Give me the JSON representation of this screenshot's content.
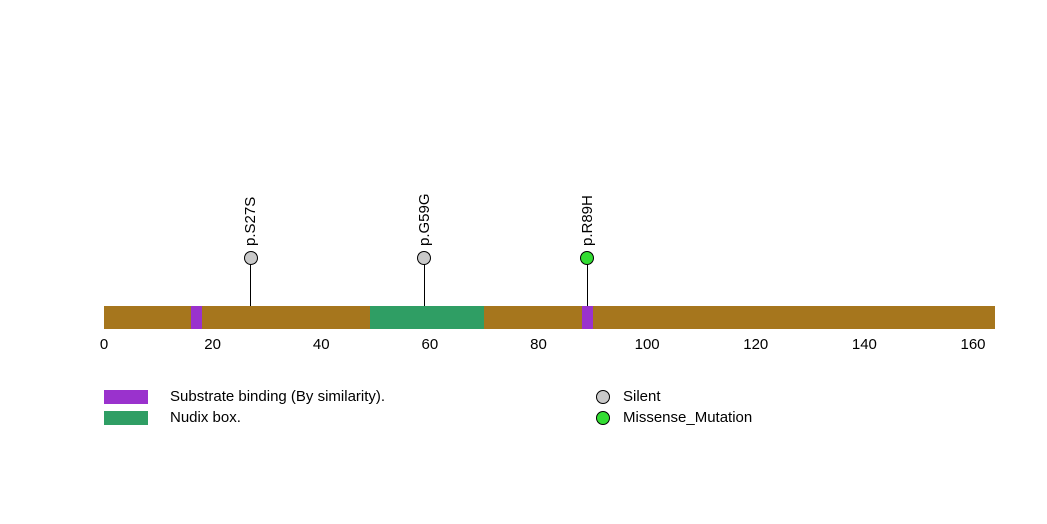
{
  "chart_data": {
    "type": "scatter",
    "variant": "protein-lollipop",
    "title": "",
    "xlabel": "",
    "ylabel": "",
    "xlim": [
      0,
      164
    ],
    "x_ticks": [
      0,
      20,
      40,
      60,
      80,
      100,
      120,
      140,
      160
    ],
    "grid": false,
    "legend_position": "bottom",
    "protein": {
      "length_aa": 164,
      "backbone_color": "#a6761d"
    },
    "domains": [
      {
        "name": "Substrate binding (By similarity).",
        "start": 16,
        "end": 18,
        "color": "#9a32cd"
      },
      {
        "name": "Nudix box.",
        "start": 49,
        "end": 70,
        "color": "#2f9e64"
      },
      {
        "name": "Substrate binding (By similarity).",
        "start": 88,
        "end": 90,
        "color": "#9a32cd"
      }
    ],
    "mutations": [
      {
        "label": "p.S27S",
        "position": 27,
        "mutation_type": "Silent",
        "color": "#c9c9c9"
      },
      {
        "label": "p.G59G",
        "position": 59,
        "mutation_type": "Silent",
        "color": "#c9c9c9"
      },
      {
        "label": "p.R89H",
        "position": 89,
        "mutation_type": "Missense_Mutation",
        "color": "#33dd33"
      }
    ],
    "legend": {
      "domains": [
        {
          "label": "Substrate binding (By similarity).",
          "color": "#9a32cd"
        },
        {
          "label": "Nudix box.",
          "color": "#2f9e64"
        }
      ],
      "mutation_types": [
        {
          "label": "Silent",
          "color": "#c9c9c9"
        },
        {
          "label": "Missense_Mutation",
          "color": "#33dd33"
        }
      ]
    }
  }
}
